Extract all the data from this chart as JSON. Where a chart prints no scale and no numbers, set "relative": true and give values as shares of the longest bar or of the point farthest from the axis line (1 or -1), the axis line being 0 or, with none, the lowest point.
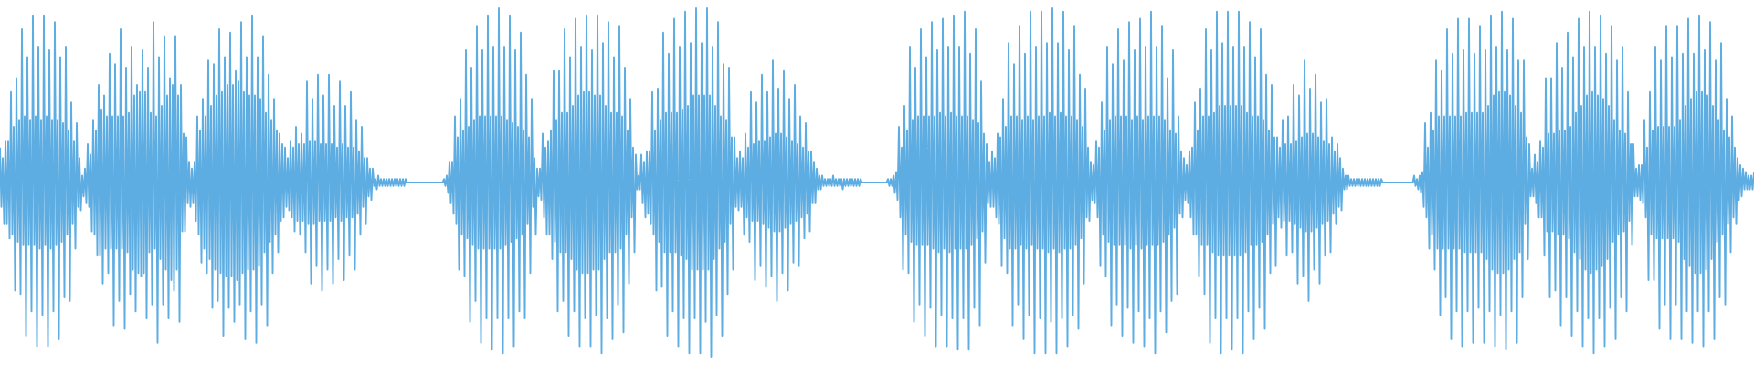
{
  "chart_data": {
    "type": "line",
    "relative": true,
    "color": "#5dade2",
    "categories": [
      null,
      null,
      null,
      null,
      null,
      null,
      null,
      null,
      null,
      null,
      null,
      null,
      null,
      null,
      null,
      null,
      null,
      null,
      null,
      null,
      null,
      null,
      null,
      null,
      null,
      null,
      null,
      null,
      null,
      null,
      null,
      null,
      null,
      null,
      null,
      null,
      null,
      null,
      null,
      null,
      null,
      null,
      null,
      null,
      null,
      null,
      null,
      null,
      null,
      null,
      null,
      null,
      null,
      null,
      null,
      null,
      null,
      null,
      null,
      null,
      null,
      null,
      null,
      null,
      null,
      null,
      null,
      null,
      null,
      null,
      null,
      null,
      null,
      null,
      null,
      null,
      null,
      null,
      null,
      null,
      null,
      null,
      null,
      null,
      null,
      null,
      null,
      null,
      null,
      null,
      null,
      null,
      null,
      null,
      null,
      null,
      null,
      null,
      null,
      null,
      null,
      null,
      null,
      null,
      null,
      null,
      null,
      null,
      null,
      null,
      null,
      null,
      null,
      null,
      null,
      null,
      null,
      null,
      null,
      null,
      null,
      null,
      null,
      null,
      null,
      null,
      null,
      null,
      null,
      null,
      null,
      null,
      null,
      null,
      null,
      null,
      null,
      null,
      null,
      null,
      null,
      null,
      null,
      null,
      null,
      null,
      null,
      null,
      null,
      null,
      null,
      null,
      null,
      null,
      null,
      null,
      null,
      null,
      null,
      null,
      null,
      null,
      null,
      null,
      null,
      null,
      null,
      null,
      null,
      null,
      null,
      null,
      null,
      null,
      null,
      null,
      null,
      null,
      null,
      null,
      null,
      null,
      null,
      null,
      null,
      null,
      null,
      null,
      null,
      null,
      null,
      null,
      null,
      null,
      null,
      null,
      null,
      null,
      null,
      null,
      null,
      null,
      null,
      null,
      null,
      null,
      null,
      null,
      null,
      null,
      null,
      null,
      null,
      null,
      null,
      null,
      null,
      null,
      null,
      null,
      null,
      null,
      null,
      null,
      null,
      null,
      null,
      null,
      null,
      null,
      null,
      null,
      null,
      null,
      null,
      null,
      null,
      null,
      null,
      null,
      null,
      null,
      null,
      null,
      null,
      null,
      null,
      null,
      null,
      null,
      null,
      null,
      null,
      null,
      null,
      null,
      null,
      null,
      null,
      null,
      null,
      null,
      null,
      null,
      null,
      null,
      null,
      null,
      null,
      null,
      null,
      null,
      null,
      null,
      null,
      null,
      null,
      null,
      null,
      null,
      null,
      null,
      null,
      null,
      null,
      null,
      null,
      null,
      null,
      null,
      null,
      null,
      null,
      null,
      null,
      null,
      null,
      null,
      null,
      null,
      null,
      null,
      null,
      null,
      null,
      null,
      null,
      null,
      null,
      null,
      null,
      null,
      null,
      null,
      null,
      null,
      null,
      null,
      null,
      null,
      null,
      null,
      null,
      null,
      null,
      null,
      null,
      null,
      null,
      null,
      null,
      null,
      null,
      null,
      null,
      null,
      null,
      null,
      null,
      null,
      null,
      null,
      null,
      null,
      null,
      null,
      null,
      null,
      null,
      null,
      null,
      null,
      null,
      null,
      null,
      null,
      null,
      null,
      null,
      null,
      null,
      null,
      null,
      null,
      null,
      null,
      null,
      null,
      null,
      null,
      null,
      null,
      null,
      null,
      null,
      null,
      null,
      null,
      null,
      null,
      null,
      null,
      null,
      null,
      null,
      null,
      null,
      null,
      null,
      null,
      null,
      null,
      null,
      null,
      null,
      null,
      null,
      null,
      null,
      null,
      null,
      null,
      null,
      null,
      null,
      null,
      null,
      null,
      null,
      null,
      null,
      null,
      null,
      null,
      null,
      null,
      null,
      null,
      null,
      null,
      null,
      null,
      null,
      null,
      null,
      null,
      null,
      null,
      null,
      null,
      null,
      null,
      null,
      null,
      null,
      null,
      null,
      null,
      null,
      null,
      null,
      null,
      null,
      null,
      null,
      null,
      null,
      null,
      null,
      null,
      null,
      null,
      null,
      null,
      null,
      null,
      null,
      null,
      null,
      null,
      null,
      null,
      null,
      null,
      null,
      null,
      null,
      null,
      null,
      null,
      null,
      null,
      null,
      null,
      null,
      null,
      null,
      null,
      null,
      null,
      null,
      null,
      null,
      null,
      null,
      null,
      null,
      null,
      null,
      null,
      null,
      null,
      null,
      null,
      null,
      null,
      null,
      null,
      null,
      null,
      null,
      null,
      null,
      null,
      null,
      null,
      null,
      null,
      null,
      null,
      null,
      null,
      null,
      null,
      null,
      null,
      null,
      null,
      null,
      null,
      null,
      null,
      null,
      null,
      null,
      null,
      null,
      null,
      null,
      null,
      null,
      null,
      null,
      null,
      null,
      null,
      null,
      null,
      null,
      null,
      null,
      null,
      null,
      null,
      null,
      null,
      null,
      null,
      null,
      null,
      null,
      null,
      null,
      null,
      null,
      null,
      null,
      null,
      null,
      null,
      null,
      null,
      null,
      null,
      null,
      null,
      null,
      null,
      null,
      null,
      null,
      null,
      null,
      null,
      null,
      null,
      null,
      null,
      null,
      null,
      null,
      null,
      null,
      null,
      null,
      null,
      null,
      null,
      null,
      null,
      null,
      null,
      null,
      null,
      null,
      null,
      null,
      null,
      null,
      null,
      null,
      null,
      null,
      null,
      null,
      null,
      null,
      null,
      null,
      null,
      null,
      null,
      null,
      null,
      null,
      null,
      null,
      null,
      null,
      null,
      null,
      null,
      null,
      null,
      null,
      null,
      null,
      null,
      null,
      null,
      null,
      null,
      null,
      null,
      null,
      null,
      null,
      null,
      null,
      null,
      null,
      null,
      null,
      null,
      null,
      null,
      null,
      null,
      null,
      null,
      null,
      null,
      null,
      null,
      null,
      null,
      null,
      null,
      null,
      null,
      null,
      null,
      null,
      null,
      null,
      null,
      null,
      null,
      null,
      null,
      null,
      null,
      null,
      null,
      null,
      null,
      null,
      null,
      null,
      null,
      null,
      null,
      null,
      null,
      null,
      null,
      null,
      null,
      null,
      null,
      null,
      null,
      null,
      null,
      null,
      null,
      null,
      null,
      null,
      null,
      null,
      null,
      null,
      null,
      null,
      null,
      null,
      null,
      null,
      null,
      null,
      null,
      null,
      null,
      null,
      null,
      null,
      null,
      null,
      null,
      null,
      null,
      null,
      null,
      null,
      null,
      null,
      null,
      null,
      null,
      null,
      null,
      null,
      null,
      null,
      null,
      null,
      null,
      null,
      null,
      null,
      null,
      null,
      null,
      null,
      null,
      null,
      null,
      null,
      null,
      null,
      null,
      null,
      null,
      null,
      null,
      null,
      null,
      null,
      null,
      null,
      null,
      null,
      null,
      null,
      null,
      null,
      null,
      null,
      null,
      null,
      null,
      null,
      null,
      null,
      null,
      null,
      null,
      null,
      null,
      null,
      null,
      null,
      null,
      null,
      null,
      null,
      null,
      null,
      null,
      null,
      null,
      null,
      null,
      null,
      null,
      null,
      null,
      null,
      null,
      null,
      null,
      null,
      null,
      null,
      null,
      null,
      null,
      null,
      null,
      null,
      null,
      null,
      null,
      null,
      null,
      null,
      null,
      null,
      null,
      null,
      null,
      null,
      null,
      null,
      null,
      null,
      null,
      null,
      null,
      null,
      null,
      null,
      null,
      null,
      null,
      null,
      null,
      null,
      null,
      null,
      null,
      null,
      null,
      null,
      null,
      null,
      null,
      null,
      null,
      null,
      null,
      null,
      null,
      null,
      null,
      null,
      null,
      null,
      null,
      null,
      null,
      null,
      null,
      null,
      null,
      null,
      null,
      null,
      null,
      null,
      null,
      null,
      null,
      null,
      null,
      null,
      null,
      null,
      null,
      null,
      null,
      null,
      null,
      null,
      null,
      null,
      null,
      null,
      null,
      null,
      null,
      null,
      null,
      null,
      null,
      null,
      null,
      null,
      null,
      null,
      null,
      null,
      null,
      null,
      null,
      null,
      null,
      null,
      null,
      null,
      null,
      null,
      null,
      null,
      null,
      null,
      null,
      null,
      null,
      null,
      null,
      null,
      null,
      null,
      null,
      null,
      null,
      null,
      null,
      null,
      null,
      null,
      null,
      null,
      null,
      null,
      null,
      null,
      null,
      null,
      null,
      null,
      null,
      null,
      null,
      null,
      null,
      null,
      null,
      null,
      null,
      null,
      null,
      null,
      null,
      null,
      null,
      null,
      null,
      null,
      null,
      null,
      null,
      null,
      null,
      null,
      null,
      null,
      null,
      null,
      null,
      null,
      null,
      null,
      null,
      null,
      null,
      null,
      null,
      null,
      null,
      null,
      null,
      null,
      null,
      null,
      null,
      null,
      null,
      null,
      null,
      null,
      null,
      null,
      null,
      null,
      null,
      null,
      null,
      null,
      null,
      null,
      null,
      null,
      null,
      null,
      null,
      null,
      null,
      null,
      null,
      null,
      null,
      null,
      null,
      null,
      null,
      null,
      null,
      null,
      null,
      null,
      null,
      null,
      null,
      null,
      null,
      null,
      null,
      null,
      null,
      null,
      null,
      null,
      null,
      null,
      null,
      null,
      null,
      null,
      null,
      null,
      null,
      null,
      null,
      null,
      null,
      null,
      null,
      null,
      null,
      null,
      null,
      null,
      null,
      null,
      null,
      null,
      null,
      null,
      null,
      null,
      null,
      null,
      null,
      null,
      null,
      null,
      null,
      null,
      null,
      null,
      null,
      null,
      null,
      null,
      null,
      null,
      null,
      null,
      null,
      null,
      null,
      null,
      null,
      null,
      null,
      null,
      null,
      null,
      null,
      null,
      null,
      null,
      null,
      null,
      null,
      null,
      null,
      null,
      null,
      null,
      null,
      null,
      null,
      null,
      null,
      null,
      null,
      null,
      null,
      null,
      null,
      null,
      null,
      null,
      null,
      null,
      null,
      null,
      null,
      null,
      null,
      null,
      null,
      null,
      null,
      null,
      null,
      null,
      null,
      null,
      null,
      null,
      null,
      null,
      null,
      null,
      null,
      null,
      null,
      null,
      null,
      null,
      null,
      null,
      null,
      null,
      null,
      null,
      null,
      null,
      null,
      null,
      null,
      null,
      null,
      null,
      null,
      null,
      null,
      null,
      null,
      null,
      null,
      null,
      null,
      null,
      null,
      null,
      null,
      null,
      null,
      null,
      null,
      null,
      null,
      null,
      null,
      null,
      null,
      null,
      null,
      null,
      null,
      null,
      null,
      null,
      null,
      null,
      null,
      null,
      null,
      null,
      null,
      null,
      null,
      null,
      null,
      null,
      null,
      null,
      null,
      null,
      null,
      null,
      null,
      null,
      null,
      null,
      null,
      null,
      null,
      null,
      null,
      null,
      null,
      null,
      null,
      null,
      null,
      null,
      null,
      null,
      null,
      null,
      null,
      null,
      null,
      null,
      null,
      null,
      null,
      null,
      null,
      null,
      null,
      null,
      null,
      null,
      null,
      null,
      null,
      null,
      null,
      null,
      null,
      null,
      null,
      null,
      null,
      null,
      null,
      null,
      null,
      null,
      null,
      null,
      null,
      null,
      null,
      null,
      null,
      null,
      null,
      null,
      null,
      null,
      null,
      null,
      null,
      null,
      null,
      null,
      null,
      null,
      null,
      null,
      null,
      null
    ],
    "values": [
      0.6,
      0.43,
      0.57,
      0.38,
      0.62,
      0.38,
      0.62,
      0.34,
      0.76,
      0.35,
      0.66,
      0.19,
      0.8,
      0.33,
      0.68,
      0.18,
      0.94,
      0.32,
      0.69,
      0.06,
      0.86,
      0.32,
      0.68,
      0.13,
      0.98,
      0.32,
      0.69,
      0.03,
      0.89,
      0.31,
      0.68,
      0.12,
      0.98,
      0.32,
      0.69,
      0.03,
      0.88,
      0.31,
      0.68,
      0.13,
      0.96,
      0.32,
      0.68,
      0.05,
      0.86,
      0.33,
      0.67,
      0.17,
      0.89,
      0.35,
      0.65,
      0.16,
      0.73,
      0.38,
      0.62,
      0.31,
      0.67,
      0.43,
      0.57,
      0.42,
      0.52,
      0.46,
      0.54,
      0.44,
      0.61,
      0.43,
      0.58,
      0.36,
      0.68,
      0.35,
      0.65,
      0.29,
      0.78,
      0.29,
      0.71,
      0.21,
      0.75,
      0.31,
      0.69,
      0.24,
      0.87,
      0.31,
      0.69,
      0.09,
      0.84,
      0.31,
      0.69,
      0.16,
      0.94,
      0.31,
      0.69,
      0.08,
      0.83,
      0.3,
      0.7,
      0.18,
      0.89,
      0.25,
      0.75,
      0.13,
      0.78,
      0.24,
      0.76,
      0.23,
      0.88,
      0.24,
      0.76,
      0.11,
      0.83,
      0.3,
      0.7,
      0.15,
      0.96,
      0.31,
      0.69,
      0.04,
      0.86,
      0.28,
      0.72,
      0.15,
      0.92,
      0.25,
      0.75,
      0.11,
      0.8,
      0.22,
      0.78,
      0.19,
      0.92,
      0.25,
      0.75,
      0.1,
      0.78,
      0.36,
      0.64,
      0.36,
      0.63,
      0.44,
      0.56,
      0.43,
      0.54,
      0.44,
      0.56,
      0.39,
      0.69,
      0.35,
      0.65,
      0.27,
      0.74,
      0.31,
      0.69,
      0.24,
      0.85,
      0.28,
      0.72,
      0.14,
      0.84,
      0.25,
      0.75,
      0.16,
      0.94,
      0.24,
      0.76,
      0.06,
      0.86,
      0.23,
      0.78,
      0.14,
      0.93,
      0.23,
      0.78,
      0.1,
      0.82,
      0.22,
      0.79,
      0.15,
      0.96,
      0.24,
      0.76,
      0.05,
      0.86,
      0.25,
      0.75,
      0.13,
      0.98,
      0.25,
      0.75,
      0.04,
      0.86,
      0.26,
      0.74,
      0.15,
      0.92,
      0.3,
      0.7,
      0.09,
      0.81,
      0.33,
      0.68,
      0.24,
      0.74,
      0.35,
      0.65,
      0.3,
      0.64,
      0.39,
      0.61,
      0.4,
      0.6,
      0.43,
      0.57,
      0.42,
      0.62,
      0.4,
      0.6,
      0.36,
      0.66,
      0.39,
      0.61,
      0.35,
      0.64,
      0.39,
      0.61,
      0.3,
      0.79,
      0.38,
      0.62,
      0.21,
      0.74,
      0.38,
      0.62,
      0.26,
      0.81,
      0.39,
      0.61,
      0.19,
      0.75,
      0.39,
      0.61,
      0.25,
      0.81,
      0.39,
      0.61,
      0.21,
      0.72,
      0.4,
      0.6,
      0.28,
      0.79,
      0.39,
      0.61,
      0.22,
      0.72,
      0.4,
      0.6,
      0.29,
      0.76,
      0.4,
      0.6,
      0.25,
      0.68,
      0.41,
      0.59,
      0.35,
      0.66,
      0.43,
      0.57,
      0.38,
      0.57,
      0.46,
      0.54,
      0.45,
      0.54,
      0.49,
      0.51,
      0.48,
      0.52,
      0.49,
      0.51,
      0.49,
      0.51,
      0.49,
      0.51,
      0.49,
      0.51,
      0.49,
      0.51,
      0.49,
      0.51,
      0.49,
      0.51,
      0.49,
      0.51,
      0.49,
      0.51,
      0.49,
      0.51,
      0.5,
      0.5,
      0.5,
      0.5,
      0.5,
      0.5,
      0.5,
      0.5,
      0.5,
      0.5,
      0.5,
      0.5,
      0.5,
      0.5,
      0.5,
      0.5,
      0.5,
      0.5,
      0.5,
      0.5,
      0.5,
      0.5,
      0.5,
      0.5,
      0.5,
      0.5,
      0.5,
      0.51,
      0.49,
      0.52,
      0.47,
      0.56,
      0.44,
      0.56,
      0.41,
      0.69,
      0.38,
      0.63,
      0.25,
      0.74,
      0.35,
      0.65,
      0.23,
      0.88,
      0.34,
      0.66,
      0.1,
      0.83,
      0.32,
      0.68,
      0.16,
      0.95,
      0.31,
      0.69,
      0.04,
      0.88,
      0.31,
      0.69,
      0.11,
      0.98,
      0.31,
      0.69,
      0.02,
      0.89,
      0.31,
      0.69,
      0.11,
      1,
      0.31,
      0.69,
      0.01,
      0.89,
      0.32,
      0.68,
      0.11,
      0.98,
      0.33,
      0.67,
      0.03,
      0.88,
      0.34,
      0.66,
      0.13,
      0.93,
      0.35,
      0.65,
      0.11,
      0.81,
      0.38,
      0.63,
      0.24,
      0.74,
      0.43,
      0.57,
      0.35,
      0.54,
      0.46,
      0.54,
      0.45,
      0.64,
      0.4,
      0.6,
      0.35,
      0.62,
      0.35,
      0.65,
      0.28,
      0.82,
      0.33,
      0.68,
      0.13,
      0.82,
      0.3,
      0.7,
      0.16,
      0.94,
      0.3,
      0.7,
      0.06,
      0.86,
      0.28,
      0.72,
      0.13,
      0.97,
      0.25,
      0.75,
      0.03,
      0.89,
      0.24,
      0.76,
      0.11,
      0.98,
      0.24,
      0.76,
      0.03,
      0.88,
      0.25,
      0.75,
      0.12,
      0.98,
      0.25,
      0.75,
      0.01,
      0.9,
      0.28,
      0.72,
      0.11,
      0.96,
      0.3,
      0.7,
      0.05,
      0.86,
      0.3,
      0.7,
      0.15,
      0.95,
      0.31,
      0.69,
      0.07,
      0.83,
      0.35,
      0.65,
      0.21,
      0.74,
      0.4,
      0.6,
      0.3,
      0.58,
      0.48,
      0.52,
      0.48,
      0.58,
      0.44,
      0.56,
      0.4,
      0.59,
      0.41,
      0.59,
      0.38,
      0.76,
      0.35,
      0.65,
      0.19,
      0.77,
      0.33,
      0.68,
      0.2,
      0.93,
      0.3,
      0.7,
      0.06,
      0.87,
      0.3,
      0.7,
      0.13,
      0.97,
      0.3,
      0.7,
      0.03,
      0.89,
      0.29,
      0.71,
      0.11,
      0.99,
      0.28,
      0.72,
      0.01,
      0.9,
      0.25,
      0.75,
      0.11,
      1,
      0.25,
      0.75,
      0.01,
      0.9,
      0.25,
      0.75,
      0.1,
      1,
      0.25,
      0.75,
      0,
      0.89,
      0.28,
      0.72,
      0.12,
      0.96,
      0.31,
      0.69,
      0.06,
      0.84,
      0.33,
      0.68,
      0.18,
      0.83,
      0.38,
      0.63,
      0.25,
      0.63,
      0.43,
      0.57,
      0.42,
      0.59,
      0.43,
      0.57,
      0.35,
      0.64,
      0.4,
      0.6,
      0.33,
      0.76,
      0.39,
      0.61,
      0.22,
      0.73,
      0.39,
      0.62,
      0.26,
      0.81,
      0.38,
      0.62,
      0.2,
      0.76,
      0.37,
      0.63,
      0.23,
      0.85,
      0.36,
      0.64,
      0.16,
      0.77,
      0.36,
      0.64,
      0.24,
      0.82,
      0.37,
      0.63,
      0.19,
      0.74,
      0.38,
      0.62,
      0.27,
      0.78,
      0.39,
      0.61,
      0.26,
      0.69,
      0.4,
      0.6,
      0.34,
      0.67,
      0.41,
      0.59,
      0.36,
      0.59,
      0.44,
      0.56,
      0.44,
      0.54,
      0.48,
      0.52,
      0.48,
      0.52,
      0.49,
      0.51,
      0.49,
      0.51,
      0.49,
      0.51,
      0.49,
      0.52,
      0.49,
      0.51,
      0.49,
      0.51,
      0.49,
      0.51,
      0.48,
      0.51,
      0.49,
      0.51,
      0.49,
      0.51,
      0.49,
      0.51,
      0.49,
      0.51,
      0.49,
      0.51,
      0.49,
      0.51,
      0.5,
      0.5,
      0.5,
      0.5,
      0.5,
      0.5,
      0.5,
      0.5,
      0.5,
      0.5,
      0.5,
      0.5,
      0.5,
      0.5,
      0.5,
      0.5,
      0.5,
      0.5,
      0.5,
      0.51,
      0.49,
      0.51,
      0.49,
      0.52,
      0.47,
      0.53,
      0.45,
      0.66,
      0.4,
      0.6,
      0.25,
      0.72,
      0.35,
      0.65,
      0.24,
      0.89,
      0.33,
      0.68,
      0.1,
      0.83,
      0.32,
      0.69,
      0.15,
      0.94,
      0.32,
      0.69,
      0.06,
      0.86,
      0.32,
      0.69,
      0.14,
      0.96,
      0.31,
      0.69,
      0.03,
      0.88,
      0.3,
      0.7,
      0.12,
      0.97,
      0.31,
      0.69,
      0.03,
      0.89,
      0.3,
      0.7,
      0.11,
      0.98,
      0.31,
      0.69,
      0.02,
      0.89,
      0.31,
      0.69,
      0.11,
      0.99,
      0.31,
      0.69,
      0.02,
      0.87,
      0.32,
      0.68,
      0.14,
      0.94,
      0.34,
      0.67,
      0.09,
      0.79,
      0.36,
      0.64,
      0.27,
      0.61,
      0.44,
      0.56,
      0.43,
      0.59,
      0.43,
      0.57,
      0.4,
      0.64,
      0.38,
      0.63,
      0.26,
      0.74,
      0.34,
      0.66,
      0.24,
      0.9,
      0.31,
      0.69,
      0.09,
      0.84,
      0.31,
      0.69,
      0.15,
      0.95,
      0.32,
      0.68,
      0.05,
      0.87,
      0.31,
      0.69,
      0.12,
      0.99,
      0.32,
      0.68,
      0.01,
      0.89,
      0.31,
      0.69,
      0.11,
      0.99,
      0.31,
      0.69,
      0.01,
      0.9,
      0.3,
      0.7,
      0.1,
      1,
      0.31,
      0.69,
      0.01,
      0.9,
      0.3,
      0.7,
      0.11,
      0.99,
      0.31,
      0.69,
      0.03,
      0.88,
      0.31,
      0.69,
      0.12,
      0.95,
      0.32,
      0.68,
      0.08,
      0.81,
      0.34,
      0.66,
      0.21,
      0.77,
      0.4,
      0.6,
      0.39,
      0.56,
      0.45,
      0.55,
      0.44,
      0.62,
      0.4,
      0.6,
      0.26,
      0.73,
      0.35,
      0.65,
      0.23,
      0.89,
      0.33,
      0.68,
      0.09,
      0.84,
      0.32,
      0.69,
      0.15,
      0.94,
      0.32,
      0.69,
      0.06,
      0.85,
      0.32,
      0.69,
      0.14,
      0.96,
      0.31,
      0.68,
      0.04,
      0.88,
      0.32,
      0.69,
      0.13,
      0.97,
      0.31,
      0.68,
      0.03,
      0.89,
      0.32,
      0.69,
      0.11,
      0.99,
      0.32,
      0.69,
      0.01,
      0.89,
      0.32,
      0.69,
      0.13,
      0.95,
      0.33,
      0.68,
      0.07,
      0.8,
      0.35,
      0.65,
      0.16,
      0.88,
      0.37,
      0.64,
      0.18,
      0.69,
      0.41,
      0.59,
      0.4,
      0.57,
      0.45,
      0.55,
      0.44,
      0.59,
      0.4,
      0.6,
      0.35,
      0.73,
      0.35,
      0.65,
      0.23,
      0.77,
      0.32,
      0.69,
      0.18,
      0.94,
      0.32,
      0.69,
      0.04,
      0.88,
      0.3,
      0.7,
      0.11,
      0.99,
      0.29,
      0.72,
      0.01,
      0.9,
      0.29,
      0.72,
      0.11,
      0.99,
      0.29,
      0.72,
      0.02,
      0.89,
      0.29,
      0.72,
      0.11,
      0.99,
      0.29,
      0.72,
      0.01,
      0.89,
      0.3,
      0.7,
      0.13,
      0.96,
      0.32,
      0.69,
      0.05,
      0.86,
      0.32,
      0.69,
      0.14,
      0.94,
      0.33,
      0.68,
      0.08,
      0.81,
      0.35,
      0.65,
      0.24,
      0.78,
      0.38,
      0.63,
      0.26,
      0.63,
      0.4,
      0.6,
      0.37,
      0.68,
      0.39,
      0.61,
      0.29,
      0.69,
      0.39,
      0.61,
      0.3,
      0.78,
      0.38,
      0.62,
      0.21,
      0.75,
      0.37,
      0.63,
      0.23,
      0.85,
      0.36,
      0.64,
      0.16,
      0.77,
      0.36,
      0.64,
      0.25,
      0.81,
      0.37,
      0.63,
      0.21,
      0.73,
      0.38,
      0.62,
      0.29,
      0.74,
      0.39,
      0.61,
      0.3,
      0.63,
      0.41,
      0.59,
      0.38,
      0.61,
      0.43,
      0.57,
      0.42,
      0.54,
      0.48,
      0.52,
      0.48,
      0.52,
      0.49,
      0.51,
      0.49,
      0.51,
      0.49,
      0.51,
      0.49,
      0.51,
      0.49,
      0.51,
      0.49,
      0.51,
      0.49,
      0.51,
      0.49,
      0.51,
      0.49,
      0.51,
      0.49,
      0.51,
      0.49,
      0.51,
      0.49,
      0.51,
      0.5,
      0.5,
      0.5,
      0.5,
      0.5,
      0.5,
      0.5,
      0.5,
      0.5,
      0.5,
      0.5,
      0.5,
      0.5,
      0.5,
      0.5,
      0.5,
      0.5,
      0.5,
      0.5,
      0.5,
      0.5,
      0.5,
      0.5,
      0.52,
      0.49,
      0.51,
      0.48,
      0.52,
      0.47,
      0.53,
      0.43,
      0.67,
      0.4,
      0.6,
      0.31,
      0.7,
      0.35,
      0.65,
      0.25,
      0.85,
      0.31,
      0.69,
      0.12,
      0.82,
      0.31,
      0.69,
      0.17,
      0.94,
      0.31,
      0.69,
      0.05,
      0.87,
      0.31,
      0.69,
      0.13,
      0.97,
      0.31,
      0.69,
      0.03,
      0.88,
      0.3,
      0.7,
      0.13,
      0.97,
      0.3,
      0.7,
      0.04,
      0.87,
      0.3,
      0.7,
      0.14,
      0.95,
      0.3,
      0.7,
      0.04,
      0.88,
      0.28,
      0.72,
      0.13,
      0.98,
      0.25,
      0.75,
      0.03,
      0.89,
      0.24,
      0.76,
      0.12,
      0.99,
      0.24,
      0.76,
      0.02,
      0.88,
      0.25,
      0.75,
      0.13,
      0.97,
      0.28,
      0.72,
      0.04,
      0.85,
      0.3,
      0.7,
      0.17,
      0.85,
      0.38,
      0.63,
      0.28,
      0.61,
      0.46,
      0.54,
      0.46,
      0.58,
      0.44,
      0.56,
      0.4,
      0.62,
      0.4,
      0.6,
      0.29,
      0.8,
      0.36,
      0.64,
      0.17,
      0.8,
      0.36,
      0.64,
      0.19,
      0.9,
      0.35,
      0.65,
      0.09,
      0.83,
      0.35,
      0.65,
      0.17,
      0.93,
      0.34,
      0.66,
      0.06,
      0.86,
      0.3,
      0.7,
      0.13,
      0.97,
      0.28,
      0.72,
      0.03,
      0.89,
      0.25,
      0.75,
      0.11,
      0.99,
      0.24,
      0.76,
      0.01,
      0.89,
      0.25,
      0.75,
      0.11,
      0.98,
      0.26,
      0.74,
      0.03,
      0.87,
      0.28,
      0.72,
      0.14,
      0.95,
      0.33,
      0.68,
      0.05,
      0.85,
      0.35,
      0.65,
      0.17,
      0.89,
      0.36,
      0.64,
      0.13,
      0.76,
      0.39,
      0.61,
      0.32,
      0.61,
      0.46,
      0.54,
      0.46,
      0.55,
      0.45,
      0.55,
      0.44,
      0.68,
      0.4,
      0.6,
      0.22,
      0.76,
      0.35,
      0.65,
      0.22,
      0.89,
      0.34,
      0.66,
      0.08,
      0.85,
      0.34,
      0.66,
      0.15,
      0.95,
      0.34,
      0.66,
      0.05,
      0.86,
      0.34,
      0.66,
      0.15,
      0.95,
      0.33,
      0.68,
      0.05,
      0.87,
      0.28,
      0.72,
      0.13,
      0.97,
      0.26,
      0.74,
      0.04,
      0.87,
      0.24,
      0.76,
      0.13,
      0.98,
      0.24,
      0.76,
      0.03,
      0.88,
      0.25,
      0.75,
      0.13,
      0.96,
      0.28,
      0.72,
      0.05,
      0.85,
      0.33,
      0.68,
      0.17,
      0.9,
      0.35,
      0.65,
      0.15,
      0.74,
      0.38,
      0.63,
      0.3,
      0.69,
      0.4,
      0.6,
      0.38,
      0.57,
      0.45,
      0.55,
      0.46,
      0.54,
      0.48,
      0.53,
      0.48,
      0.52,
      0.48,
      0.52,
      0.48,
      0.53
    ]
  }
}
